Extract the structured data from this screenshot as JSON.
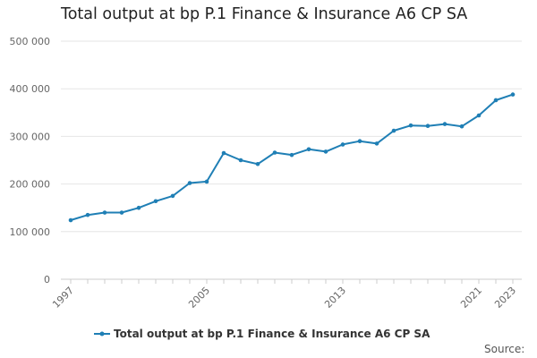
{
  "chart_data": {
    "type": "line",
    "title": "Total output at bp P.1 Finance & Insurance A6 CP SA",
    "x": [
      1997,
      1998,
      1999,
      2000,
      2001,
      2002,
      2003,
      2004,
      2005,
      2006,
      2007,
      2008,
      2009,
      2010,
      2011,
      2012,
      2013,
      2014,
      2015,
      2016,
      2017,
      2018,
      2019,
      2020,
      2021,
      2022,
      2023
    ],
    "series": [
      {
        "name": "Total output at bp P.1 Finance & Insurance A6 CP SA",
        "color": "#1f7fb5",
        "values": [
          124000,
          135000,
          140000,
          140000,
          150000,
          164000,
          175000,
          202000,
          205000,
          265000,
          250000,
          242000,
          266000,
          261000,
          273000,
          268000,
          283000,
          290000,
          285000,
          312000,
          323000,
          322000,
          326000,
          321000,
          344000,
          376000,
          388000
        ]
      }
    ],
    "xlabel": "",
    "ylabel": "",
    "ylim": [
      0,
      500000
    ],
    "yticks": [
      0,
      100000,
      200000,
      300000,
      400000,
      500000
    ],
    "ytick_labels": [
      "0",
      "100 000",
      "200 000",
      "300 000",
      "400 000",
      "500 000"
    ],
    "xtick_labels": [
      "1997",
      "2005",
      "2013",
      "2021",
      "2023"
    ],
    "grid": true,
    "legend_position": "bottom",
    "source_label": "Source:"
  }
}
